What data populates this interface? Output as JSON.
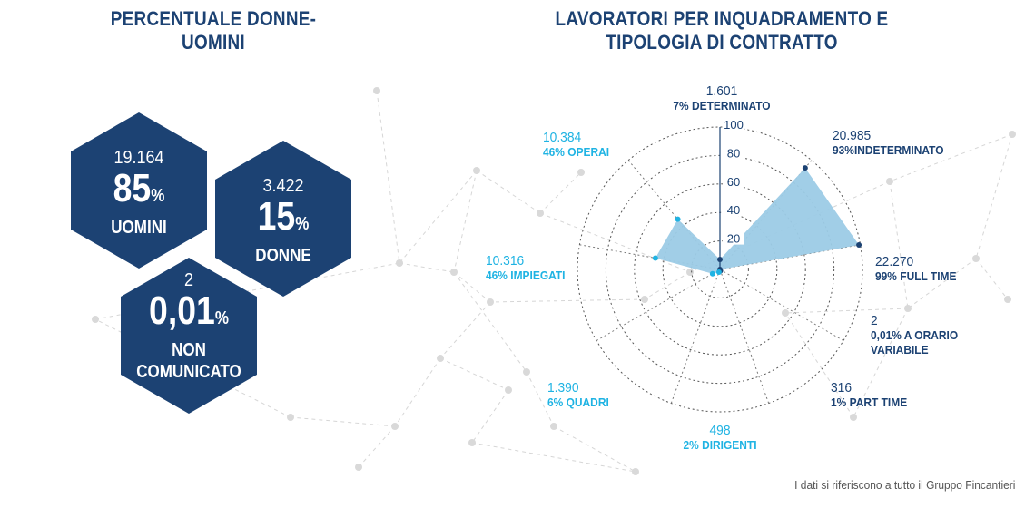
{
  "left_panel": {
    "title": "PERCENTUALE DONNE-UOMINI",
    "hexagons": [
      {
        "count": "19.164",
        "percent": "85",
        "percent_sign": "%",
        "label_lines": [
          "UOMINI"
        ]
      },
      {
        "count": "3.422",
        "percent": "15",
        "percent_sign": "%",
        "label_lines": [
          "DONNE"
        ]
      },
      {
        "count": "2",
        "percent": "0,01",
        "percent_sign": "%",
        "label_lines": [
          "NON",
          "COMUNICATO"
        ]
      }
    ]
  },
  "right_panel": {
    "title_line1": "LAVORATORI PER INQUADRAMENTO E",
    "title_line2": "TIPOLOGIA DI CONTRATTO"
  },
  "chart_data": {
    "type": "radar",
    "title": "LAVORATORI PER INQUADRAMENTO E TIPOLOGIA DI CONTRATTO",
    "axis_ticks": [
      "20",
      "40",
      "60",
      "80",
      "100"
    ],
    "rmax": 100,
    "grid": true,
    "axes": [
      {
        "category": "DETERMINATO",
        "count": "1.601",
        "label": "7% DETERMINATO",
        "value": 7,
        "color_group": "dark"
      },
      {
        "category": "INDETERMINATO",
        "count": "20.985",
        "label": "93%INDETERMINATO",
        "value": 93,
        "color_group": "dark"
      },
      {
        "category": "FULL TIME",
        "count": "22.270",
        "label": "99% FULL TIME",
        "value": 99,
        "color_group": "dark"
      },
      {
        "category": "A ORARIO VARIABILE",
        "count": "2",
        "label": "0,01% A ORARIO VARIABILE",
        "label_lines": [
          "0,01% A ORARIO",
          "VARIABILE"
        ],
        "value": 0.01,
        "color_group": "dark"
      },
      {
        "category": "PART TIME",
        "count": "316",
        "label": "1% PART TIME",
        "value": 1,
        "color_group": "dark"
      },
      {
        "category": "DIRIGENTI",
        "count": "498",
        "label": "2% DIRIGENTI",
        "value": 2,
        "color_group": "light"
      },
      {
        "category": "QUADRI",
        "count": "1.390",
        "label": "6% QUADRI",
        "value": 6,
        "color_group": "light"
      },
      {
        "category": "IMPIEGATI",
        "count": "10.316",
        "label": "46% IMPIEGATI",
        "value": 46,
        "color_group": "light"
      },
      {
        "category": "OPERAI",
        "count": "10.384",
        "label": "46% OPERAI",
        "value": 46,
        "color_group": "light"
      }
    ]
  },
  "colors": {
    "navy": "#1c4273",
    "light_blue": "#1fb3e3",
    "dark_blue_text": "#1c4273",
    "radar_fill": "#9ccbe6",
    "dot_dark": "#1c4273",
    "dot_light": "#1fb3e3"
  },
  "footnote": "I dati si riferiscono a tutto il Gruppo Fincantieri"
}
